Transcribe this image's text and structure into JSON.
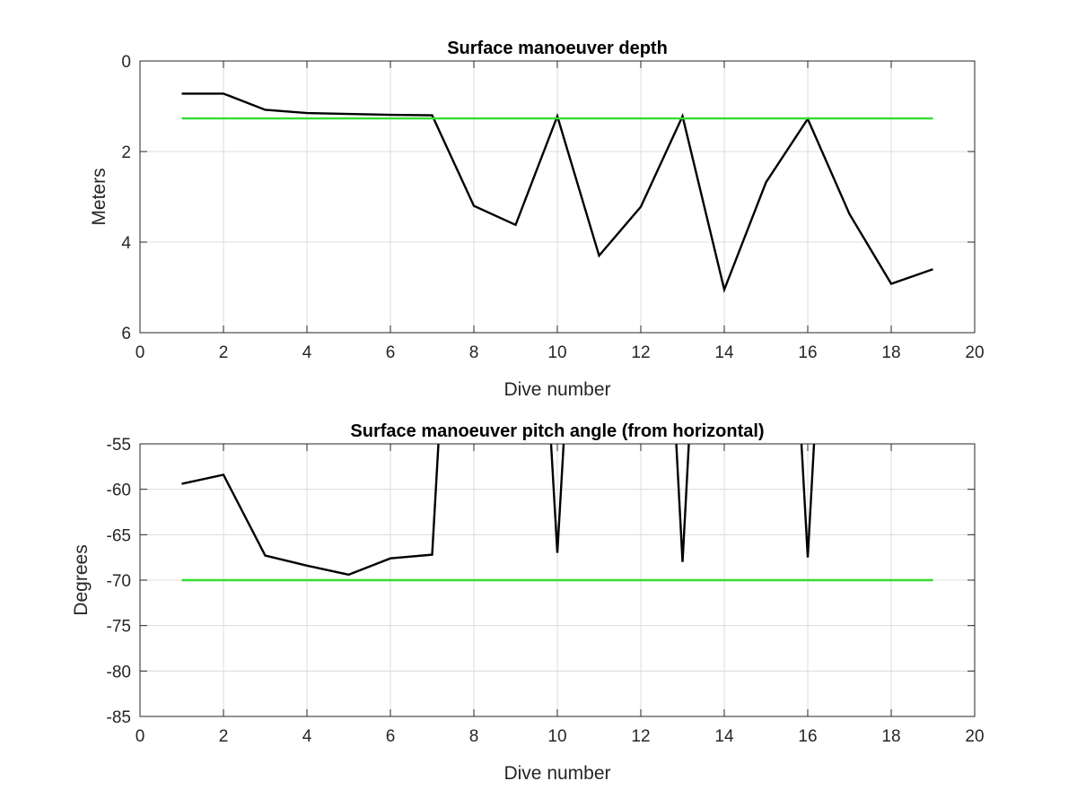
{
  "chart_data": [
    {
      "type": "line",
      "title": "Surface manoeuver depth",
      "xlabel": "Dive number",
      "ylabel": "Meters",
      "xlim": [
        0,
        20
      ],
      "ylim": [
        0,
        6
      ],
      "y_reversed": true,
      "grid": true,
      "xticks": [
        "0",
        "2",
        "4",
        "6",
        "8",
        "10",
        "12",
        "14",
        "16",
        "18",
        "20"
      ],
      "yticks": [
        "0",
        "2",
        "4",
        "6"
      ],
      "series": [
        {
          "color": "#000000",
          "x": [
            1,
            2,
            3,
            4,
            5,
            6,
            7,
            8,
            9,
            10,
            11,
            12,
            13,
            14,
            15,
            16,
            17,
            18,
            19
          ],
          "y": [
            0.72,
            0.72,
            1.08,
            1.15,
            1.17,
            1.19,
            1.2,
            3.2,
            3.62,
            1.22,
            4.3,
            3.22,
            1.22,
            5.05,
            2.68,
            1.28,
            3.38,
            4.92,
            4.6
          ]
        },
        {
          "color": "#33dd33",
          "x": [
            1,
            19
          ],
          "y": [
            1.27,
            1.27
          ]
        }
      ]
    },
    {
      "type": "line",
      "title": "Surface manoeuver pitch angle (from horizontal)",
      "xlabel": "Dive number",
      "ylabel": "Degrees",
      "xlim": [
        0,
        20
      ],
      "ylim": [
        -85,
        -55
      ],
      "grid": true,
      "xticks": [
        "0",
        "2",
        "4",
        "6",
        "8",
        "10",
        "12",
        "14",
        "16",
        "18",
        "20"
      ],
      "yticks": [
        "-55",
        "-60",
        "-65",
        "-70",
        "-75",
        "-80",
        "-85"
      ],
      "series": [
        {
          "color": "#000000",
          "segments": [
            {
              "x": [
                1,
                2,
                3,
                4,
                5,
                6,
                7,
                7.15
              ],
              "y": [
                -59.4,
                -58.4,
                -67.3,
                -68.4,
                -69.4,
                -67.6,
                -67.2,
                -55
              ]
            },
            {
              "x": [
                9.85,
                10,
                10.15
              ],
              "y": [
                -55,
                -67,
                -55
              ]
            },
            {
              "x": [
                12.85,
                13,
                13.15
              ],
              "y": [
                -55,
                -68,
                -55
              ]
            },
            {
              "x": [
                15.85,
                16,
                16.15
              ],
              "y": [
                -55,
                -67.5,
                -55
              ]
            }
          ]
        },
        {
          "color": "#33dd33",
          "x": [
            1,
            19
          ],
          "y": [
            -70,
            -70
          ]
        }
      ]
    }
  ]
}
